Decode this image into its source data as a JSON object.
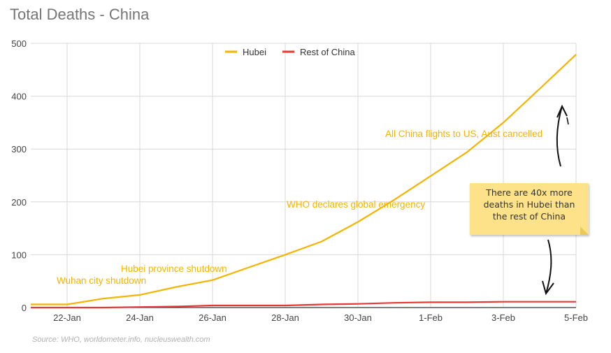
{
  "title": "Total Deaths - China",
  "source": "Source: WHO, worldometer.info, nucleuswealth.com",
  "note": {
    "lines": [
      "There are 40x more",
      "deaths in Hubei than",
      "the rest of China"
    ]
  },
  "chart_data": {
    "type": "line",
    "x": [
      "21-Jan",
      "22-Jan",
      "23-Jan",
      "24-Jan",
      "25-Jan",
      "26-Jan",
      "27-Jan",
      "28-Jan",
      "29-Jan",
      "30-Jan",
      "31-Jan",
      "1-Feb",
      "2-Feb",
      "3-Feb",
      "4-Feb",
      "5-Feb"
    ],
    "x_tick_labels": [
      "22-Jan",
      "24-Jan",
      "26-Jan",
      "28-Jan",
      "30-Jan",
      "1-Feb",
      "3-Feb",
      "5-Feb"
    ],
    "ylim": [
      0,
      500
    ],
    "y_ticks": [
      0,
      100,
      200,
      300,
      400,
      500
    ],
    "grid": true,
    "legend": "top-center",
    "series": [
      {
        "name": "Hubei",
        "color": "#f4b400",
        "values": [
          6,
          6,
          17,
          24,
          39,
          52,
          76,
          100,
          125,
          162,
          204,
          249,
          294,
          350,
          414,
          479
        ]
      },
      {
        "name": "Rest of China",
        "color": "#e53935",
        "values": [
          0,
          0,
          0,
          1,
          2,
          4,
          4,
          4,
          6,
          7,
          9,
          10,
          10,
          11,
          11,
          11
        ]
      }
    ],
    "annotations": [
      {
        "text": "Wuhan city shutdown",
        "x": "23-Jan"
      },
      {
        "text": "Hubei province shutdown",
        "x": "25-Jan"
      },
      {
        "text": "WHO declares global emergency",
        "x": "30-Jan"
      },
      {
        "text": "All China flights to US, Aust cancelled",
        "x": "2-Feb"
      }
    ]
  }
}
